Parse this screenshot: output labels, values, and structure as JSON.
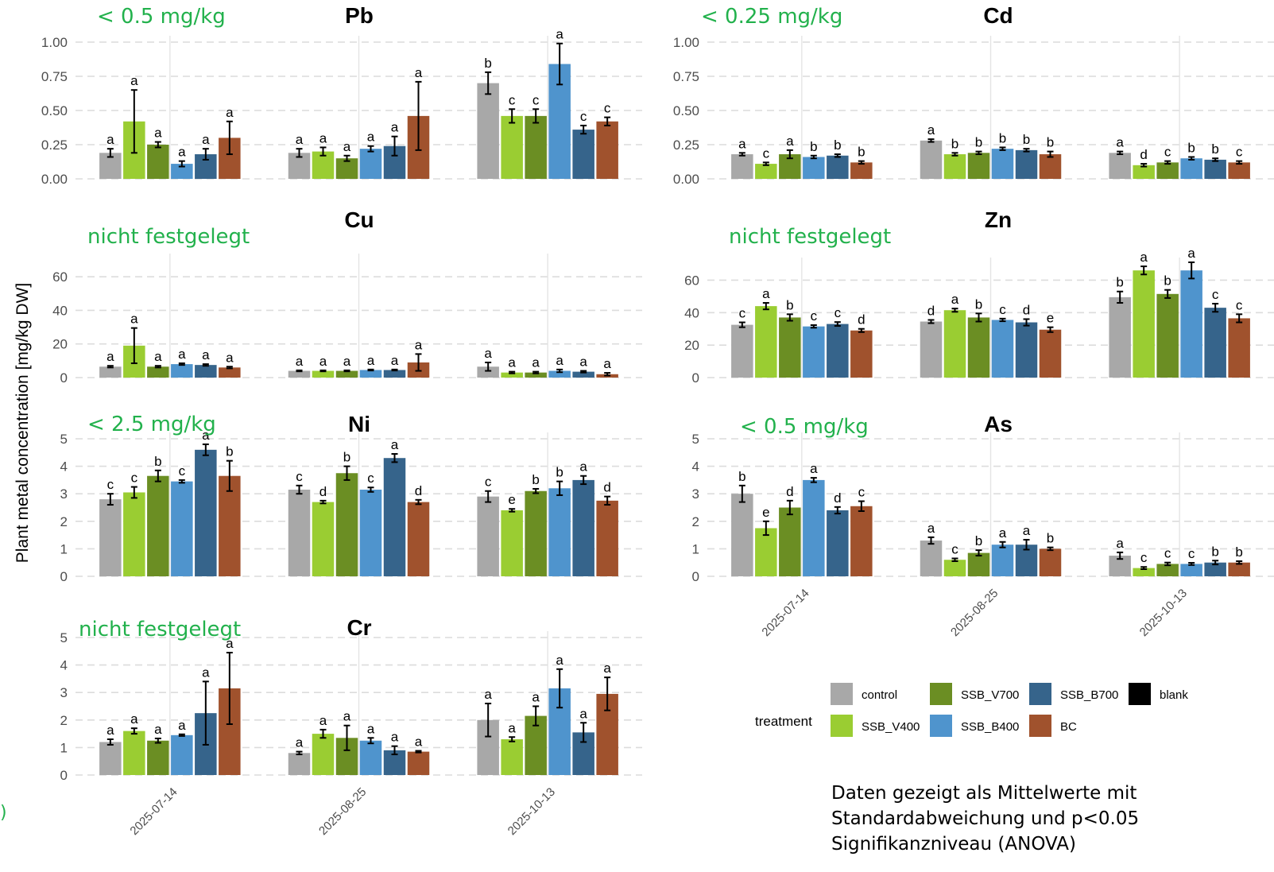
{
  "figure": {
    "y_axis_label": "Plant metal concentration [mg/kg DW]",
    "dates": [
      "2025-07-14",
      "2025-08-25",
      "2025-10-13"
    ],
    "stray_text": ")",
    "note_lines": [
      "Daten gezeigt als Mittelwerte mit",
      "Standardabweichung und p<0.05",
      "Signifikanzniveau (ANOVA)"
    ]
  },
  "legend": {
    "title": "treatment",
    "items": [
      {
        "name": "control",
        "color": "#a8a8a8"
      },
      {
        "name": "SSB_V400",
        "color": "#9acd32"
      },
      {
        "name": "SSB_V700",
        "color": "#6b8e23"
      },
      {
        "name": "SSB_B400",
        "color": "#4f94cd"
      },
      {
        "name": "SSB_B700",
        "color": "#36648b"
      },
      {
        "name": "BC",
        "color": "#a0522d"
      },
      {
        "name": "blank",
        "color": "#000000"
      }
    ]
  },
  "chart_data": [
    {
      "type": "bar",
      "title": "Pb",
      "limit_note": "< 0.5 mg/kg",
      "ylim": [
        0,
        1.0
      ],
      "yticks": [
        0,
        0.25,
        0.5,
        0.75,
        1.0
      ],
      "ytick_labels": [
        "0.00",
        "0.25",
        "0.50",
        "0.75",
        "1.00"
      ],
      "grid": true,
      "show_x_labels": false,
      "categories": [
        "2025-07-14",
        "2025-08-25",
        "2025-10-13"
      ],
      "series": [
        {
          "name": "control",
          "values": [
            0.19,
            0.19,
            0.7
          ],
          "sd": [
            0.03,
            0.03,
            0.08
          ],
          "letters": [
            "a",
            "a",
            "b"
          ]
        },
        {
          "name": "SSB_V400",
          "values": [
            0.42,
            0.2,
            0.46
          ],
          "sd": [
            0.23,
            0.03,
            0.05
          ],
          "letters": [
            "a",
            "a",
            "c"
          ]
        },
        {
          "name": "SSB_V700",
          "values": [
            0.25,
            0.15,
            0.46
          ],
          "sd": [
            0.02,
            0.02,
            0.05
          ],
          "letters": [
            "a",
            "a",
            "c"
          ]
        },
        {
          "name": "SSB_B400",
          "values": [
            0.11,
            0.22,
            0.84
          ],
          "sd": [
            0.02,
            0.02,
            0.15
          ],
          "letters": [
            "a",
            "a",
            "a"
          ]
        },
        {
          "name": "SSB_B700",
          "values": [
            0.18,
            0.24,
            0.36
          ],
          "sd": [
            0.04,
            0.07,
            0.03
          ],
          "letters": [
            "a",
            "a",
            "c"
          ]
        },
        {
          "name": "BC",
          "values": [
            0.3,
            0.46,
            0.42
          ],
          "sd": [
            0.12,
            0.25,
            0.03
          ],
          "letters": [
            "a",
            "a",
            "c"
          ]
        }
      ]
    },
    {
      "type": "bar",
      "title": "Cd",
      "limit_note": "< 0.25 mg/kg",
      "ylim": [
        0,
        1.0
      ],
      "yticks": [
        0,
        0.25,
        0.5,
        0.75,
        1.0
      ],
      "ytick_labels": [
        "0.00",
        "0.25",
        "0.50",
        "0.75",
        "1.00"
      ],
      "grid": true,
      "show_x_labels": false,
      "categories": [
        "2025-07-14",
        "2025-08-25",
        "2025-10-13"
      ],
      "series": [
        {
          "name": "control",
          "values": [
            0.18,
            0.28,
            0.19
          ],
          "sd": [
            0.01,
            0.01,
            0.01
          ],
          "letters": [
            "a",
            "a",
            "a"
          ]
        },
        {
          "name": "SSB_V400",
          "values": [
            0.11,
            0.18,
            0.1
          ],
          "sd": [
            0.01,
            0.01,
            0.01
          ],
          "letters": [
            "c",
            "b",
            "d"
          ]
        },
        {
          "name": "SSB_V700",
          "values": [
            0.18,
            0.19,
            0.12
          ],
          "sd": [
            0.03,
            0.01,
            0.01
          ],
          "letters": [
            "a",
            "b",
            "c"
          ]
        },
        {
          "name": "SSB_B400",
          "values": [
            0.16,
            0.22,
            0.15
          ],
          "sd": [
            0.01,
            0.01,
            0.01
          ],
          "letters": [
            "b",
            "b",
            "b"
          ]
        },
        {
          "name": "SSB_B700",
          "values": [
            0.17,
            0.21,
            0.14
          ],
          "sd": [
            0.01,
            0.01,
            0.01
          ],
          "letters": [
            "b",
            "b",
            "b"
          ]
        },
        {
          "name": "BC",
          "values": [
            0.12,
            0.18,
            0.12
          ],
          "sd": [
            0.01,
            0.02,
            0.01
          ],
          "letters": [
            "b",
            "b",
            "c"
          ]
        }
      ]
    },
    {
      "type": "bar",
      "title": "Cu",
      "limit_note": "nicht festgelegt",
      "ylim": [
        0,
        70
      ],
      "yticks": [
        0,
        20,
        40,
        60
      ],
      "ytick_labels": [
        "0",
        "20",
        "40",
        "60"
      ],
      "grid": true,
      "show_x_labels": false,
      "categories": [
        "2025-07-14",
        "2025-08-25",
        "2025-10-13"
      ],
      "series": [
        {
          "name": "control",
          "values": [
            6.5,
            4.0,
            6.5
          ],
          "sd": [
            0.5,
            0.3,
            2.5
          ],
          "letters": [
            "a",
            "a",
            "a"
          ]
        },
        {
          "name": "SSB_V400",
          "values": [
            19.0,
            4.0,
            3.0
          ],
          "sd": [
            10.5,
            0.3,
            0.5
          ],
          "letters": [
            "a",
            "a",
            "a"
          ]
        },
        {
          "name": "SSB_V700",
          "values": [
            6.5,
            4.0,
            3.0
          ],
          "sd": [
            0.5,
            0.3,
            0.5
          ],
          "letters": [
            "a",
            "a",
            "a"
          ]
        },
        {
          "name": "SSB_B400",
          "values": [
            8.0,
            4.5,
            4.0
          ],
          "sd": [
            0.5,
            0.3,
            0.8
          ],
          "letters": [
            "a",
            "a",
            "a"
          ]
        },
        {
          "name": "SSB_B700",
          "values": [
            7.5,
            4.5,
            3.5
          ],
          "sd": [
            0.5,
            0.3,
            0.5
          ],
          "letters": [
            "a",
            "a",
            "a"
          ]
        },
        {
          "name": "BC",
          "values": [
            6.0,
            9.0,
            2.0
          ],
          "sd": [
            0.5,
            5.0,
            0.8
          ],
          "letters": [
            "a",
            "a",
            "a"
          ]
        }
      ]
    },
    {
      "type": "bar",
      "title": "Zn",
      "limit_note": "nicht festgelegt",
      "ylim": [
        0,
        70
      ],
      "yticks": [
        0,
        20,
        40,
        60
      ],
      "ytick_labels": [
        "0",
        "20",
        "40",
        "60"
      ],
      "grid": true,
      "show_x_labels": false,
      "categories": [
        "2025-07-14",
        "2025-08-25",
        "2025-10-13"
      ],
      "series": [
        {
          "name": "control",
          "values": [
            32.5,
            34.5,
            49.5
          ],
          "sd": [
            1.5,
            1.0,
            3.5
          ],
          "letters": [
            "c",
            "d",
            "b"
          ]
        },
        {
          "name": "SSB_V400",
          "values": [
            44.0,
            41.5,
            66.0
          ],
          "sd": [
            2.0,
            1.0,
            2.5
          ],
          "letters": [
            "a",
            "a",
            "a"
          ]
        },
        {
          "name": "SSB_V700",
          "values": [
            37.0,
            37.0,
            51.5
          ],
          "sd": [
            2.0,
            2.5,
            2.5
          ],
          "letters": [
            "b",
            "b",
            "b"
          ]
        },
        {
          "name": "SSB_B400",
          "values": [
            31.5,
            35.5,
            66.0
          ],
          "sd": [
            0.8,
            0.8,
            5.0
          ],
          "letters": [
            "c",
            "c",
            "a"
          ]
        },
        {
          "name": "SSB_B700",
          "values": [
            33.0,
            34.0,
            43.0
          ],
          "sd": [
            1.2,
            2.0,
            2.5
          ],
          "letters": [
            "c",
            "d",
            "c"
          ]
        },
        {
          "name": "BC",
          "values": [
            29.0,
            29.5,
            36.5
          ],
          "sd": [
            1.0,
            1.5,
            2.5
          ],
          "letters": [
            "d",
            "e",
            "c"
          ]
        }
      ]
    },
    {
      "type": "bar",
      "title": "Ni",
      "limit_note": "< 2.5 mg/kg",
      "ylim": [
        0,
        5
      ],
      "yticks": [
        0,
        1,
        2,
        3,
        4,
        5
      ],
      "ytick_labels": [
        "0",
        "1",
        "2",
        "3",
        "4",
        "5"
      ],
      "grid": true,
      "show_x_labels": false,
      "categories": [
        "2025-07-14",
        "2025-08-25",
        "2025-10-13"
      ],
      "series": [
        {
          "name": "control",
          "values": [
            2.8,
            3.15,
            2.9
          ],
          "sd": [
            0.2,
            0.15,
            0.2
          ],
          "letters": [
            "c",
            "c",
            "c"
          ]
        },
        {
          "name": "SSB_V400",
          "values": [
            3.05,
            2.7,
            2.4
          ],
          "sd": [
            0.2,
            0.05,
            0.05
          ],
          "letters": [
            "c",
            "d",
            "e"
          ]
        },
        {
          "name": "SSB_V700",
          "values": [
            3.65,
            3.75,
            3.1
          ],
          "sd": [
            0.2,
            0.25,
            0.08
          ],
          "letters": [
            "b",
            "b",
            "b"
          ]
        },
        {
          "name": "SSB_B400",
          "values": [
            3.45,
            3.15,
            3.2
          ],
          "sd": [
            0.05,
            0.08,
            0.25
          ],
          "letters": [
            "c",
            "c",
            "b"
          ]
        },
        {
          "name": "SSB_B700",
          "values": [
            4.6,
            4.3,
            3.5
          ],
          "sd": [
            0.2,
            0.15,
            0.15
          ],
          "letters": [
            "a",
            "a",
            "a"
          ]
        },
        {
          "name": "BC",
          "values": [
            3.65,
            2.7,
            2.75
          ],
          "sd": [
            0.55,
            0.08,
            0.15
          ],
          "letters": [
            "b",
            "d",
            "d"
          ]
        }
      ]
    },
    {
      "type": "bar",
      "title": "As",
      "limit_note": "< 0.5 mg/kg",
      "ylim": [
        0,
        5
      ],
      "yticks": [
        0,
        1,
        2,
        3,
        4,
        5
      ],
      "ytick_labels": [
        "0",
        "1",
        "2",
        "3",
        "4",
        "5"
      ],
      "grid": true,
      "show_x_labels": true,
      "categories": [
        "2025-07-14",
        "2025-08-25",
        "2025-10-13"
      ],
      "series": [
        {
          "name": "control",
          "values": [
            3.0,
            1.3,
            0.75
          ],
          "sd": [
            0.3,
            0.12,
            0.12
          ],
          "letters": [
            "b",
            "a",
            "a"
          ]
        },
        {
          "name": "SSB_V400",
          "values": [
            1.75,
            0.6,
            0.3
          ],
          "sd": [
            0.25,
            0.05,
            0.04
          ],
          "letters": [
            "e",
            "c",
            "c"
          ]
        },
        {
          "name": "SSB_V700",
          "values": [
            2.5,
            0.85,
            0.45
          ],
          "sd": [
            0.25,
            0.1,
            0.05
          ],
          "letters": [
            "d",
            "b",
            "c"
          ]
        },
        {
          "name": "SSB_B400",
          "values": [
            3.5,
            1.15,
            0.45
          ],
          "sd": [
            0.08,
            0.1,
            0.04
          ],
          "letters": [
            "a",
            "a",
            "c"
          ]
        },
        {
          "name": "SSB_B700",
          "values": [
            2.4,
            1.15,
            0.5
          ],
          "sd": [
            0.12,
            0.18,
            0.07
          ],
          "letters": [
            "d",
            "a",
            "b"
          ]
        },
        {
          "name": "BC",
          "values": [
            2.55,
            1.0,
            0.5
          ],
          "sd": [
            0.18,
            0.05,
            0.05
          ],
          "letters": [
            "c",
            "b",
            "b"
          ]
        }
      ]
    },
    {
      "type": "bar",
      "title": "Cr",
      "limit_note": "nicht festgelegt",
      "ylim": [
        0,
        5
      ],
      "yticks": [
        0,
        1,
        2,
        3,
        4,
        5
      ],
      "ytick_labels": [
        "0",
        "1",
        "2",
        "3",
        "4",
        "5"
      ],
      "grid": true,
      "show_x_labels": true,
      "categories": [
        "2025-07-14",
        "2025-08-25",
        "2025-10-13"
      ],
      "series": [
        {
          "name": "control",
          "values": [
            1.2,
            0.8,
            2.0
          ],
          "sd": [
            0.1,
            0.05,
            0.6
          ],
          "letters": [
            "a",
            "a",
            "a"
          ]
        },
        {
          "name": "SSB_V400",
          "values": [
            1.6,
            1.5,
            1.3
          ],
          "sd": [
            0.1,
            0.15,
            0.08
          ],
          "letters": [
            "a",
            "a",
            "a"
          ]
        },
        {
          "name": "SSB_V700",
          "values": [
            1.25,
            1.35,
            2.15
          ],
          "sd": [
            0.08,
            0.45,
            0.35
          ],
          "letters": [
            "a",
            "a",
            "a"
          ]
        },
        {
          "name": "SSB_B400",
          "values": [
            1.45,
            1.25,
            3.15
          ],
          "sd": [
            0.03,
            0.1,
            0.7
          ],
          "letters": [
            "a",
            "a",
            "a"
          ]
        },
        {
          "name": "SSB_B700",
          "values": [
            2.25,
            0.9,
            1.55
          ],
          "sd": [
            1.15,
            0.15,
            0.35
          ],
          "letters": [
            "a",
            "a",
            "a"
          ]
        },
        {
          "name": "BC",
          "values": [
            3.15,
            0.85,
            2.95
          ],
          "sd": [
            1.3,
            0.03,
            0.6
          ],
          "letters": [
            "a",
            "a",
            "a"
          ]
        }
      ]
    }
  ]
}
